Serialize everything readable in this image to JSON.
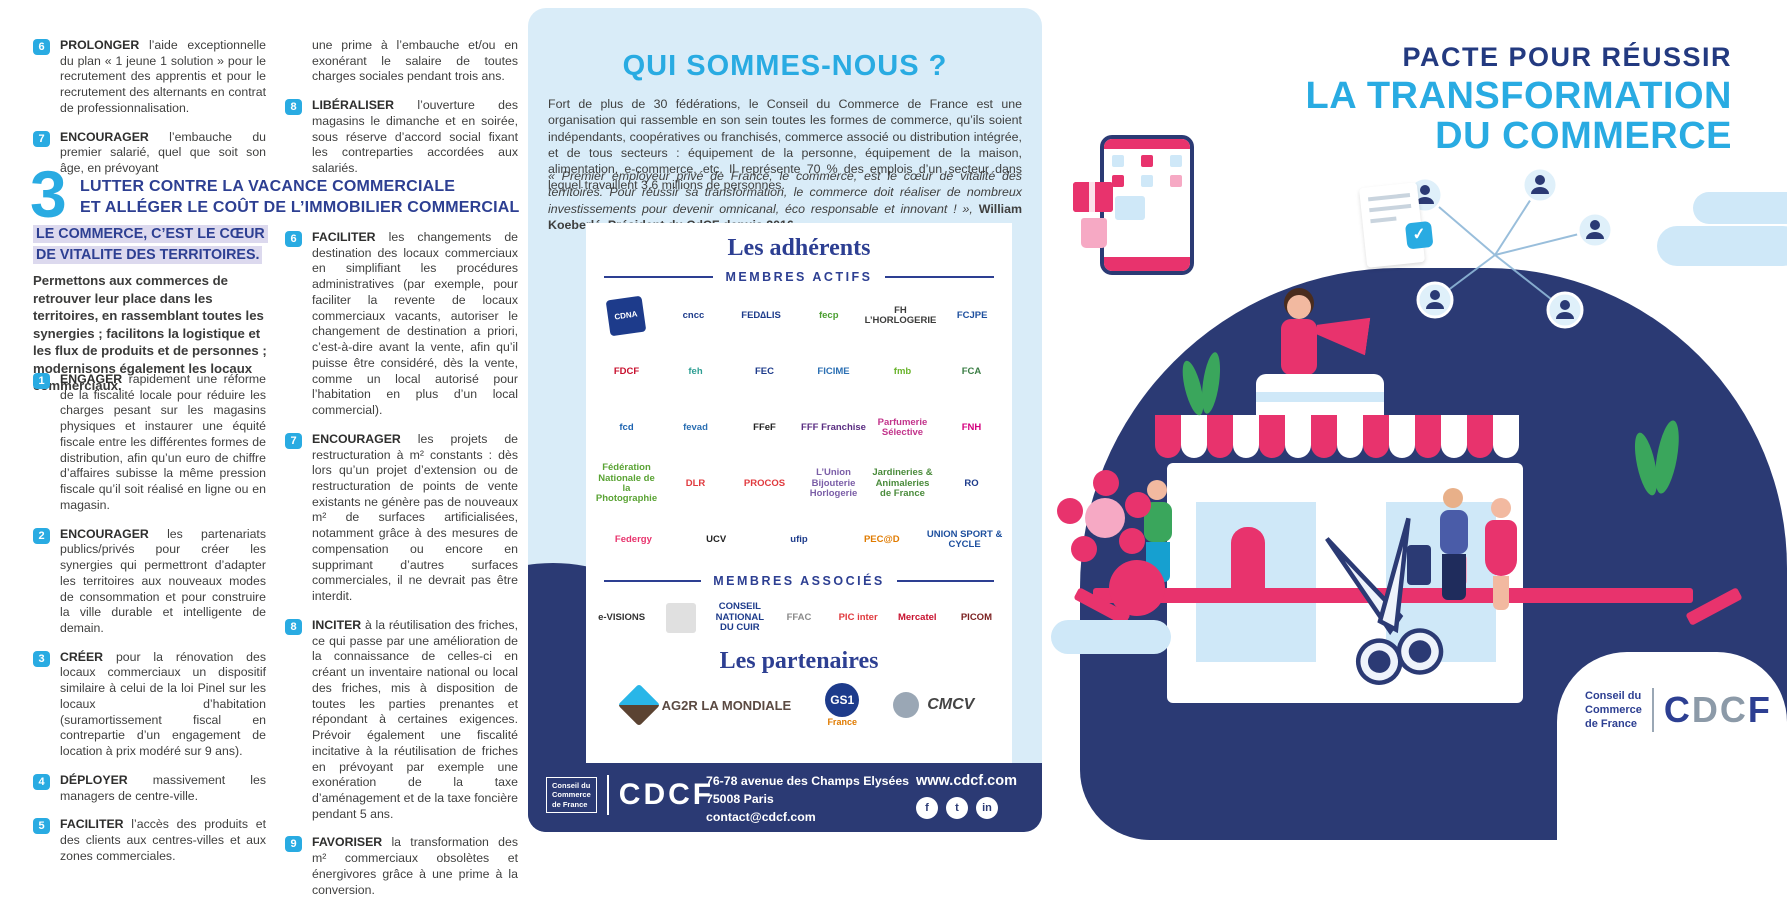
{
  "colors": {
    "accent_cyan": "#29abe2",
    "navy_heading": "#2d3f92",
    "dark_navy": "#2b3a74",
    "pink": "#e8336d",
    "light_blue_bg": "#d9ecf8",
    "highlight_lavender": "#dcd9ee",
    "body_text": "#3f3f3e"
  },
  "left_panel": {
    "items_top_left": [
      {
        "num": "6",
        "keyword": "PROLONGER",
        "text": "l’aide exceptionnelle du plan « 1 jeune 1 solution » pour le recrutement des apprentis et pour le recrutement des alternants en contrat de professionnalisation."
      },
      {
        "num": "7",
        "keyword": "ENCOURAGER",
        "text": "l’embauche du premier salarié, quel que soit son âge, en prévoyant"
      }
    ],
    "items_top_right": [
      {
        "num": "",
        "keyword": "",
        "text": "une prime à l’embauche et/ou en exonérant le salaire de toutes charges sociales pendant trois ans."
      },
      {
        "num": "8",
        "keyword": "LIBÉRALISER",
        "text": "l’ouverture des magasins le dimanche et en soirée, sous réserve d’accord social fixant les contreparties accordées aux salariés."
      }
    ],
    "section": {
      "number": "3",
      "title_line1": "LUTTER CONTRE LA VACANCE COMMERCIALE",
      "title_line2": "ET ALLÉGER LE COÛT DE L’IMMOBILIER COMMERCIAL"
    },
    "highlight": "LE COMMERCE, C’EST LE CŒUR DE VITALITE DES TERRITOIRES.",
    "intro": "Permettons aux commerces de retrouver leur place dans les territoires, en rassemblant toutes les synergies ; facilitons la logistique et les flux de produits et de personnes ; modernisons également les locaux commerciaux.",
    "items_left": [
      {
        "num": "1",
        "keyword": "ENGAGER",
        "text": "rapidement une réforme de la fiscalité locale pour réduire les charges pesant sur les magasins physiques et instaurer une équité fiscale entre les différentes formes de distribution, afin qu’un euro de chiffre d’affaires subisse la même pression fiscale qu’il soit réalisé en ligne ou en magasin."
      },
      {
        "num": "2",
        "keyword": "ENCOURAGER",
        "text": "les partenariats publics/privés pour créer les synergies qui permettront d’adapter les territoires aux nouveaux modes de consommation et pour construire la ville durable et intelligente de demain."
      },
      {
        "num": "3",
        "keyword": "CRÉER",
        "text": "pour la rénovation des locaux commerciaux un dispositif similaire à celui de la loi Pinel sur les locaux d’habitation (suramortissement fiscal en contrepartie d’un engagement de location à prix modéré sur 9 ans)."
      },
      {
        "num": "4",
        "keyword": "DÉPLOYER",
        "text": "massivement les managers de centre-ville."
      },
      {
        "num": "5",
        "keyword": "FACILITER",
        "text": "l’accès des produits et des clients aux centres-villes et aux zones commerciales."
      }
    ],
    "items_right": [
      {
        "num": "6",
        "keyword": "FACILITER",
        "text": "les changements de destination des locaux commerciaux en simplifiant les procédures administratives (par exemple, pour faciliter la revente de locaux commerciaux vacants, autoriser le changement de destination a priori, c’est-à-dire avant la vente, afin qu’il puisse être considéré, dès la vente, comme un local autorisé pour l’habitation en plus d’un local commercial)."
      },
      {
        "num": "7",
        "keyword": "ENCOURAGER",
        "text": "les projets de restructuration à m² constants : dès lors qu’un projet d’extension ou de restructuration de points de vente existants ne génère pas de nouveaux m² de surfaces artificialisées, notamment grâce à des mesures de compensation ou encore en supprimant d’autres surfaces commerciales, il ne devrait pas être interdit."
      },
      {
        "num": "8",
        "keyword": "INCITER",
        "text": "à la réutilisation des friches, ce qui passe par une amélioration de la connaissance de celles-ci en créant un inventaire national ou local des friches, mis à disposition de toutes les parties prenantes et répondant à certaines exigences. Prévoir également une fiscalité incitative à la réutilisation de friches en prévoyant par exemple une exonération de la taxe d’aménagement et de la taxe foncière pendant 5 ans."
      },
      {
        "num": "9",
        "keyword": "FAVORISER",
        "text": "la transformation des m² commerciaux obsolètes et énergivores grâce à une prime à la conversion."
      }
    ]
  },
  "middle_panel": {
    "heading": "QUI SOMMES-NOUS ?",
    "paragraph": "Fort de plus de 30 fédérations, le Conseil du Commerce de France est une organisation qui rassemble en son sein toutes les formes de commerce, qu’ils soient indépendants, coopératives ou franchisés, commerce associé ou distribution intégrée, et de tous secteurs : équipement de la personne, équipement de la maison, alimentation, e-commerce, etc. Il représente 70 % des emplois d’un secteur dans lequel travaillent 3,6 millions de personnes.",
    "quote": "« Premier employeur privé de France, le commerce, est le cœur de vitalité des territoires. Pour réussir sa transformation, le commerce doit réaliser de nombreux investissements pour devenir omnicanal, éco responsable et innovant ! », ",
    "quote_author": "William Koeberlé, Président du CdCF depuis 2016.",
    "adherents_title": "Les adhérents",
    "membres_actifs_label": "MEMBRES ACTIFS",
    "membres_actifs": [
      [
        {
          "label": "CDNA",
          "color": "#ffffff",
          "tile": "navy-square"
        },
        {
          "label": "cncc",
          "color": "#1d3b8b"
        },
        {
          "label": "FED∆LIS",
          "color": "#1d3b8b"
        },
        {
          "label": "fecp",
          "color": "#4a9e2f"
        },
        {
          "label": "FH L’HORLOGERIE",
          "color": "#3c3c3b"
        },
        {
          "label": "FCJPE",
          "color": "#1d4f9e"
        }
      ],
      [
        {
          "label": "FDCF",
          "color": "#c8102e"
        },
        {
          "label": "feh",
          "color": "#2e9e93"
        },
        {
          "label": "FEC",
          "color": "#1d3b8b"
        },
        {
          "label": "FICIME",
          "color": "#2b6fb3"
        },
        {
          "label": "fmb",
          "color": "#6ab42d"
        },
        {
          "label": "FCA",
          "color": "#3a7d44"
        }
      ],
      [
        {
          "label": "fcd",
          "color": "#1d63b0"
        },
        {
          "label": "fevad",
          "color": "#2b6fb3"
        },
        {
          "label": "FFeF",
          "color": "#222222"
        },
        {
          "label": "FFF Franchise",
          "color": "#5a2d82"
        },
        {
          "label": "Parfumerie Sélective",
          "color": "#c2348b"
        },
        {
          "label": "FNH",
          "color": "#d5007f"
        }
      ],
      [
        {
          "label": "Fédération Nationale de la Photographie",
          "color": "#5aa334"
        },
        {
          "label": "DLR",
          "color": "#e03a3e"
        },
        {
          "label": "PROCOS",
          "color": "#e03a3e"
        },
        {
          "label": "L’Union Bijouterie Horlogerie",
          "color": "#7b5ea7"
        },
        {
          "label": "Jardineries & Animaleries de France",
          "color": "#4a8b3b"
        },
        {
          "label": "RO",
          "color": "#1d3b8b"
        }
      ],
      [
        {
          "label": "Federgy",
          "color": "#e8336d"
        },
        {
          "label": "UCV",
          "color": "#222222"
        },
        {
          "label": "ufip",
          "color": "#1d3b8b"
        },
        {
          "label": "PEC@D",
          "color": "#e07b00"
        },
        {
          "label": "UNION SPORT & CYCLE",
          "color": "#1d4f9e"
        }
      ]
    ],
    "membres_associes_label": "MEMBRES ASSOCIÉS",
    "membres_associes": [
      [
        {
          "label": "e-VISIONS",
          "color": "#333333"
        },
        {
          "label": "",
          "color": "#888888"
        },
        {
          "label": "CONSEIL NATIONAL DU CUIR",
          "color": "#1d3b8b"
        },
        {
          "label": "FFAC",
          "color": "#8a8a8a"
        },
        {
          "label": "PIC inter",
          "color": "#e03a3e"
        },
        {
          "label": "Mercatel",
          "color": "#c8102e"
        },
        {
          "label": "PICOM",
          "color": "#7a1f1f"
        }
      ]
    ],
    "partenaires_title": "Les partenaires",
    "partenaires": {
      "ag2r": "AG2R LA MONDIALE",
      "gs1": "GS1",
      "gs1_sub": "France",
      "cmcv": "CMCV"
    },
    "footer": {
      "address_line1": "76-78 avenue des Champs Elysées",
      "address_line2": "75008 Paris",
      "address_line3": "contact@cdcf.com",
      "website": "www.cdcf.com",
      "social": [
        "facebook",
        "twitter",
        "linkedin"
      ]
    }
  },
  "right_panel": {
    "title_line1": "PACTE POUR RÉUSSIR",
    "title_line2": "LA TRANSFORMATION",
    "title_line3": "DU COMMERCE"
  },
  "brand": {
    "line1": "Conseil du",
    "line2": "Commerce",
    "line3": "de France",
    "acronym": "CDCF"
  }
}
